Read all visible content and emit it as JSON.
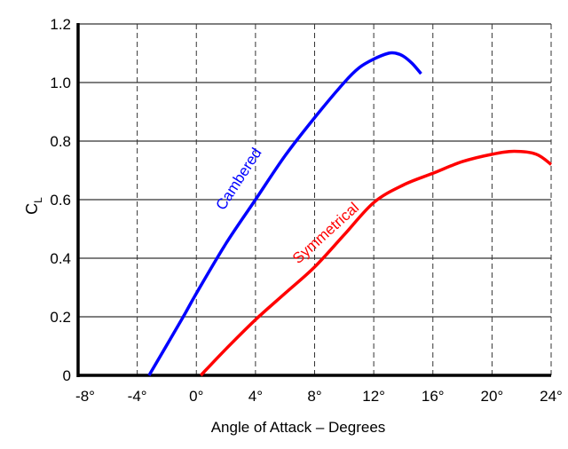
{
  "chart_data": {
    "type": "line",
    "title": "",
    "xlabel": "Angle of Attack – Degrees",
    "ylabel": "C",
    "ylabel_subscript": "L",
    "xlim": [
      -8,
      24
    ],
    "ylim": [
      0,
      1.2
    ],
    "grid": true,
    "x_ticks": [
      -8,
      -4,
      0,
      4,
      8,
      12,
      16,
      20,
      24
    ],
    "x_tick_labels": [
      "-8°",
      "-4°",
      "0°",
      "4°",
      "8°",
      "12°",
      "16°",
      "20°",
      "24°"
    ],
    "y_ticks": [
      0,
      0.2,
      0.4,
      0.6,
      0.8,
      1.0,
      1.2
    ],
    "y_tick_labels": [
      "0",
      "0.2",
      "0.4",
      "0.6",
      "0.8",
      "1.0",
      "1.2"
    ],
    "series": [
      {
        "name": "Cambered",
        "color": "#0000ff",
        "x": [
          -3.2,
          -1,
          0,
          2,
          4,
          6,
          8,
          10,
          11,
          12,
          13,
          13.5,
          14,
          14.6,
          15.2
        ],
        "y": [
          0,
          0.19,
          0.28,
          0.45,
          0.6,
          0.75,
          0.88,
          1.0,
          1.05,
          1.08,
          1.1,
          1.1,
          1.09,
          1.065,
          1.03
        ]
      },
      {
        "name": "Symmetrical",
        "color": "#ff0000",
        "x": [
          0.3,
          2,
          4,
          6,
          8,
          10,
          12,
          14,
          16,
          18,
          20,
          21.5,
          23,
          24
        ],
        "y": [
          0,
          0.09,
          0.19,
          0.28,
          0.37,
          0.48,
          0.59,
          0.65,
          0.69,
          0.73,
          0.755,
          0.765,
          0.755,
          0.72
        ]
      }
    ]
  }
}
